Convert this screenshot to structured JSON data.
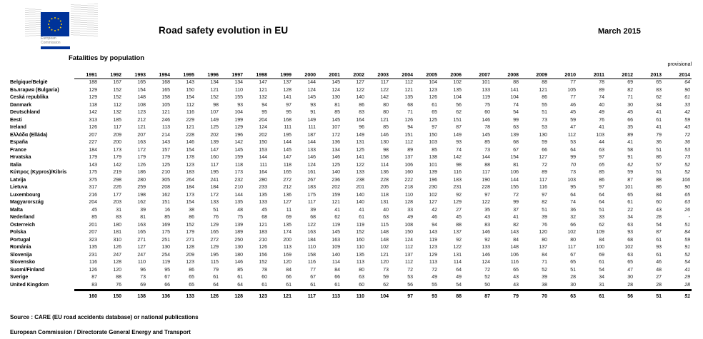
{
  "header": {
    "title": "Road safety evolution in EU",
    "date": "March 2015",
    "logo": {
      "caption_line1": "European",
      "caption_line2": "Commission"
    }
  },
  "table": {
    "subtitle": "Fatalities by population",
    "provisional_label": "provisional",
    "years": [
      "1991",
      "1992",
      "1993",
      "1994",
      "1995",
      "1996",
      "1997",
      "1998",
      "1999",
      "2000",
      "2001",
      "2002",
      "2003",
      "2004",
      "2005",
      "2006",
      "2007",
      "2008",
      "2009",
      "2010",
      "2011",
      "2012",
      "2013",
      "2014"
    ],
    "rows": [
      {
        "country": "Belgique/België",
        "values": [
          188,
          167,
          165,
          168,
          143,
          134,
          134,
          147,
          137,
          144,
          145,
          127,
          117,
          112,
          104,
          102,
          101,
          88,
          88,
          77,
          78,
          69,
          65,
          64
        ]
      },
      {
        "country": "България (Bulgaria)",
        "values": [
          129,
          152,
          154,
          165,
          150,
          121,
          110,
          121,
          128,
          124,
          124,
          122,
          122,
          121,
          123,
          135,
          133,
          141,
          121,
          105,
          89,
          82,
          83,
          90
        ]
      },
      {
        "country": "Česká republika",
        "values": [
          129,
          152,
          148,
          158,
          154,
          152,
          155,
          132,
          141,
          145,
          130,
          140,
          142,
          135,
          126,
          104,
          119,
          104,
          86,
          77,
          74,
          71,
          62,
          61
        ]
      },
      {
        "country": "Danmark",
        "values": [
          118,
          112,
          108,
          105,
          112,
          98,
          93,
          94,
          97,
          93,
          81,
          86,
          80,
          68,
          61,
          56,
          75,
          74,
          55,
          46,
          40,
          30,
          34,
          33
        ]
      },
      {
        "country": "Deutschland",
        "values": [
          142,
          132,
          123,
          121,
          116,
          107,
          104,
          95,
          95,
          91,
          85,
          83,
          80,
          71,
          65,
          62,
          60,
          54,
          51,
          45,
          49,
          45,
          41,
          42
        ]
      },
      {
        "country": "Eesti",
        "values": [
          313,
          185,
          212,
          246,
          229,
          149,
          199,
          204,
          168,
          149,
          145,
          164,
          121,
          126,
          125,
          151,
          146,
          99,
          73,
          59,
          76,
          66,
          61,
          59
        ]
      },
      {
        "country": "Ireland",
        "values": [
          126,
          117,
          121,
          113,
          121,
          125,
          129,
          124,
          111,
          111,
          107,
          96,
          85,
          94,
          97,
          87,
          78,
          63,
          53,
          47,
          41,
          35,
          41,
          43
        ]
      },
      {
        "country": "Ελλάδα (Elláda)",
        "values": [
          207,
          209,
          207,
          214,
          228,
          202,
          196,
          202,
          195,
          187,
          172,
          149,
          146,
          151,
          150,
          149,
          145,
          139,
          130,
          112,
          103,
          89,
          79,
          72
        ]
      },
      {
        "country": "España",
        "values": [
          227,
          200,
          163,
          143,
          146,
          139,
          142,
          150,
          144,
          144,
          136,
          131,
          130,
          112,
          103,
          93,
          85,
          68,
          59,
          53,
          44,
          41,
          36,
          36
        ]
      },
      {
        "country": "France",
        "values": [
          184,
          173,
          172,
          157,
          154,
          147,
          145,
          153,
          145,
          133,
          134,
          125,
          98,
          89,
          85,
          74,
          73,
          67,
          66,
          64,
          63,
          58,
          51,
          53
        ]
      },
      {
        "country": "Hrvatska",
        "values": [
          179,
          179,
          179,
          179,
          178,
          160,
          159,
          144,
          147,
          146,
          146,
          141,
          158,
          137,
          138,
          142,
          144,
          154,
          127,
          99,
          97,
          91,
          86,
          73
        ]
      },
      {
        "country": "Italia",
        "values": [
          143,
          142,
          126,
          125,
          123,
          117,
          118,
          111,
          118,
          124,
          125,
          122,
          114,
          106,
          101,
          98,
          88,
          81,
          72,
          70,
          65,
          62,
          57,
          52
        ]
      },
      {
        "country": "Κύπρος (Kypros)/Kibris",
        "values": [
          175,
          219,
          186,
          210,
          183,
          195,
          173,
          164,
          165,
          161,
          140,
          133,
          136,
          160,
          139,
          116,
          117,
          106,
          89,
          73,
          85,
          59,
          51,
          52
        ]
      },
      {
        "country": "Latvija",
        "values": [
          375,
          298,
          280,
          305,
          264,
          241,
          232,
          280,
          272,
          267,
          236,
          238,
          228,
          222,
          196,
          183,
          190,
          144,
          117,
          103,
          86,
          87,
          88,
          106
        ]
      },
      {
        "country": "Lietuva",
        "values": [
          317,
          226,
          259,
          208,
          184,
          184,
          210,
          233,
          212,
          183,
          202,
          201,
          205,
          218,
          230,
          231,
          228,
          155,
          116,
          95,
          97,
          101,
          86,
          90
        ]
      },
      {
        "country": "Luxembourg",
        "values": [
          216,
          177,
          198,
          162,
          173,
          172,
          144,
          135,
          136,
          175,
          159,
          140,
          118,
          110,
          102,
          92,
          97,
          72,
          97,
          64,
          64,
          65,
          84,
          65
        ]
      },
      {
        "country": "Magyarország",
        "values": [
          204,
          203,
          162,
          151,
          154,
          133,
          135,
          133,
          127,
          117,
          121,
          140,
          131,
          128,
          127,
          129,
          122,
          99,
          82,
          74,
          64,
          61,
          60,
          63
        ]
      },
      {
        "country": "Malta",
        "values": [
          45,
          31,
          39,
          16,
          38,
          51,
          48,
          45,
          11,
          39,
          41,
          41,
          40,
          33,
          42,
          27,
          35,
          37,
          51,
          36,
          51,
          22,
          43,
          26
        ]
      },
      {
        "country": "Nederland",
        "values": [
          85,
          83,
          81,
          85,
          86,
          76,
          75,
          68,
          69,
          68,
          62,
          61,
          63,
          49,
          46,
          45,
          43,
          41,
          39,
          32,
          33,
          34,
          28,
          "-"
        ]
      },
      {
        "country": "Österreich",
        "values": [
          201,
          180,
          163,
          169,
          152,
          129,
          139,
          121,
          135,
          122,
          119,
          119,
          115,
          108,
          94,
          88,
          83,
          82,
          76,
          66,
          62,
          63,
          54,
          51
        ]
      },
      {
        "country": "Polska",
        "values": [
          207,
          181,
          165,
          175,
          179,
          165,
          189,
          183,
          174,
          163,
          145,
          152,
          148,
          150,
          143,
          137,
          146,
          143,
          120,
          102,
          109,
          93,
          87,
          84
        ]
      },
      {
        "country": "Portugal",
        "values": [
          323,
          310,
          271,
          251,
          271,
          272,
          250,
          210,
          200,
          184,
          163,
          160,
          148,
          124,
          119,
          92,
          92,
          84,
          80,
          80,
          84,
          68,
          61,
          59
        ]
      },
      {
        "country": "România",
        "values": [
          135,
          126,
          127,
          130,
          128,
          129,
          130,
          126,
          113,
          110,
          109,
          110,
          102,
          112,
          123,
          122,
          133,
          148,
          137,
          117,
          100,
          102,
          93,
          91
        ]
      },
      {
        "country": "Slovenija",
        "values": [
          231,
          247,
          247,
          254,
          209,
          195,
          180,
          156,
          169,
          158,
          140,
          135,
          121,
          137,
          129,
          131,
          146,
          106,
          84,
          67,
          69,
          63,
          61,
          52
        ]
      },
      {
        "country": "Slovensko",
        "values": [
          116,
          128,
          110,
          119,
          123,
          115,
          146,
          152,
          120,
          116,
          114,
          113,
          120,
          112,
          113,
          114,
          124,
          116,
          71,
          65,
          61,
          65,
          46,
          54
        ]
      },
      {
        "country": "Suomi/Finland",
        "values": [
          126,
          120,
          96,
          95,
          86,
          79,
          85,
          78,
          84,
          77,
          84,
          80,
          73,
          72,
          72,
          64,
          72,
          65,
          52,
          51,
          54,
          47,
          48,
          41
        ]
      },
      {
        "country": "Sverige",
        "values": [
          87,
          88,
          73,
          67,
          65,
          61,
          61,
          60,
          66,
          67,
          66,
          63,
          59,
          53,
          49,
          49,
          52,
          43,
          39,
          28,
          34,
          30,
          27,
          29
        ]
      },
      {
        "country": "United Kingdom",
        "values": [
          83,
          76,
          69,
          66,
          65,
          64,
          64,
          61,
          61,
          61,
          61,
          60,
          62,
          56,
          55,
          54,
          50,
          43,
          38,
          30,
          31,
          28,
          28,
          28
        ]
      }
    ],
    "totals": [
      160,
      150,
      138,
      136,
      133,
      126,
      128,
      123,
      121,
      117,
      113,
      110,
      104,
      97,
      93,
      88,
      87,
      79,
      70,
      63,
      61,
      56,
      51,
      51
    ],
    "italic_cells": [
      [
        11,
        19
      ],
      [
        11,
        20
      ],
      [
        11,
        21
      ]
    ]
  },
  "footer": {
    "source": "Source : CARE (EU road accidents database) or national publications",
    "organisation": "European Commission / Directorate General Energy and Transport"
  }
}
